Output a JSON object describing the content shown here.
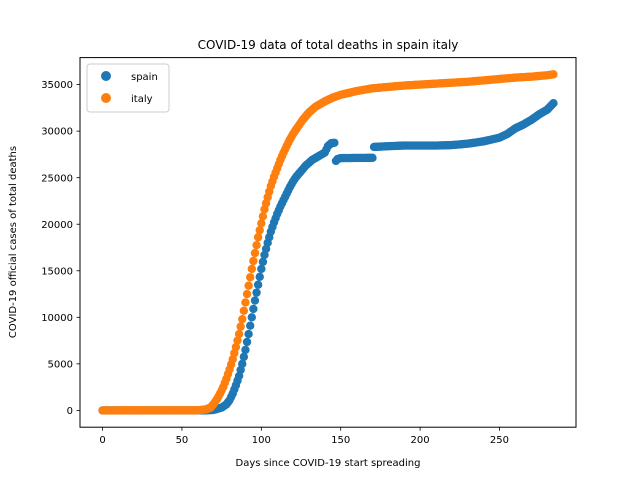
{
  "chart_data": {
    "type": "scatter",
    "title": "COVID-19 data of total deaths in spain italy",
    "xlabel": "Days since COVID-19 start spreading",
    "ylabel": "COVID-19 official cases of total deaths",
    "xlim": [
      -14.2,
      298.2
    ],
    "ylim": [
      -1805,
      37900
    ],
    "xticks": [
      0,
      50,
      100,
      150,
      200,
      250
    ],
    "yticks": [
      0,
      5000,
      10000,
      15000,
      20000,
      25000,
      30000,
      35000
    ],
    "grid": false,
    "legend_position": "top-left",
    "series": [
      {
        "name": "spain",
        "color": "#1f77b4",
        "points": [
          [
            0,
            0
          ],
          [
            65,
            0
          ],
          [
            70,
            50
          ],
          [
            75,
            300
          ],
          [
            78,
            650
          ],
          [
            80,
            1100
          ],
          [
            82,
            1800
          ],
          [
            84,
            2700
          ],
          [
            86,
            3700
          ],
          [
            88,
            5000
          ],
          [
            90,
            6500
          ],
          [
            92,
            8200
          ],
          [
            94,
            10000
          ],
          [
            96,
            11800
          ],
          [
            98,
            13500
          ],
          [
            100,
            15200
          ],
          [
            102,
            16700
          ],
          [
            104,
            18000
          ],
          [
            106,
            19200
          ],
          [
            108,
            20200
          ],
          [
            110,
            21100
          ],
          [
            112,
            21900
          ],
          [
            114,
            22600
          ],
          [
            116,
            23300
          ],
          [
            118,
            24000
          ],
          [
            120,
            24600
          ],
          [
            122,
            25100
          ],
          [
            124,
            25500
          ],
          [
            126,
            25900
          ],
          [
            128,
            26300
          ],
          [
            130,
            26600
          ],
          [
            132,
            26900
          ],
          [
            134,
            27100
          ],
          [
            136,
            27300
          ],
          [
            138,
            27500
          ],
          [
            140,
            27700
          ],
          [
            142,
            28400
          ],
          [
            144,
            28700
          ],
          [
            146,
            28750
          ],
          [
            147,
            26800
          ],
          [
            148,
            27000
          ],
          [
            150,
            27100
          ],
          [
            160,
            27120
          ],
          [
            170,
            27130
          ],
          [
            171,
            28300
          ],
          [
            180,
            28380
          ],
          [
            190,
            28450
          ],
          [
            200,
            28450
          ],
          [
            210,
            28450
          ],
          [
            220,
            28500
          ],
          [
            230,
            28650
          ],
          [
            240,
            28900
          ],
          [
            250,
            29300
          ],
          [
            255,
            29700
          ],
          [
            260,
            30300
          ],
          [
            265,
            30700
          ],
          [
            270,
            31200
          ],
          [
            275,
            31800
          ],
          [
            280,
            32300
          ],
          [
            284,
            33000
          ]
        ]
      },
      {
        "name": "italy",
        "color": "#ff7f0e",
        "points": [
          [
            0,
            0
          ],
          [
            60,
            10
          ],
          [
            65,
            100
          ],
          [
            68,
            300
          ],
          [
            70,
            700
          ],
          [
            72,
            1200
          ],
          [
            74,
            1800
          ],
          [
            76,
            2500
          ],
          [
            78,
            3400
          ],
          [
            80,
            4400
          ],
          [
            82,
            5500
          ],
          [
            84,
            6800
          ],
          [
            86,
            8200
          ],
          [
            88,
            9800
          ],
          [
            90,
            11600
          ],
          [
            92,
            13400
          ],
          [
            94,
            15200
          ],
          [
            96,
            16900
          ],
          [
            98,
            18600
          ],
          [
            100,
            20100
          ],
          [
            102,
            21600
          ],
          [
            104,
            22900
          ],
          [
            106,
            24100
          ],
          [
            108,
            25100
          ],
          [
            110,
            26000
          ],
          [
            112,
            26900
          ],
          [
            114,
            27700
          ],
          [
            116,
            28400
          ],
          [
            118,
            29100
          ],
          [
            120,
            29700
          ],
          [
            122,
            30200
          ],
          [
            124,
            30700
          ],
          [
            126,
            31200
          ],
          [
            128,
            31600
          ],
          [
            130,
            32000
          ],
          [
            132,
            32300
          ],
          [
            134,
            32600
          ],
          [
            136,
            32800
          ],
          [
            138,
            33000
          ],
          [
            140,
            33200
          ],
          [
            145,
            33600
          ],
          [
            150,
            33900
          ],
          [
            155,
            34100
          ],
          [
            160,
            34300
          ],
          [
            165,
            34450
          ],
          [
            170,
            34600
          ],
          [
            180,
            34750
          ],
          [
            190,
            34900
          ],
          [
            200,
            35000
          ],
          [
            210,
            35100
          ],
          [
            220,
            35200
          ],
          [
            230,
            35300
          ],
          [
            240,
            35450
          ],
          [
            250,
            35600
          ],
          [
            260,
            35750
          ],
          [
            270,
            35850
          ],
          [
            280,
            36000
          ],
          [
            284,
            36100
          ]
        ]
      }
    ]
  }
}
